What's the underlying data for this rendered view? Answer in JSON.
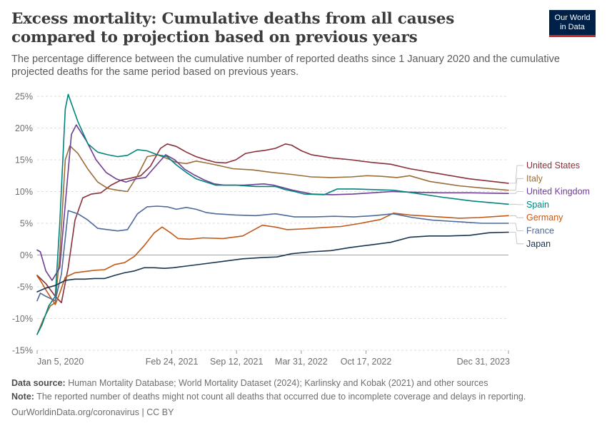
{
  "title": "Excess mortality: Cumulative deaths from all causes compared to projection based on previous years",
  "subtitle": "The percentage difference between the cumulative number of reported deaths since 1 January 2020 and the cumulative projected deaths for the same period based on previous years.",
  "logo": {
    "line1": "Our World",
    "line2": "in Data"
  },
  "footer": {
    "source_label": "Data source:",
    "source_text": " Human Mortality Database; World Mortality Dataset (2024); Karlinsky and Kobak (2021) and other sources",
    "note_label": "Note:",
    "note_text": " The reported number of deaths might not count all deaths that occurred due to incomplete coverage and delays in reporting.",
    "credit": "OurWorldinData.org/coronavirus | CC BY"
  },
  "chart_data": {
    "type": "line",
    "ylim": [
      -15,
      25
    ],
    "yticks": [
      -15,
      -10,
      -5,
      0,
      5,
      10,
      15,
      20,
      25
    ],
    "ytick_labels": [
      "-15%",
      "-10%",
      "-5%",
      "0%",
      "5%",
      "10%",
      "15%",
      "20%",
      "25%"
    ],
    "xlim": [
      "2020-01-05",
      "2023-12-31"
    ],
    "xticks": [
      "2020-01-05",
      "2021-02-24",
      "2021-09-12",
      "2022-03-31",
      "2022-10-17",
      "2023-12-31"
    ],
    "xtick_labels": [
      "Jan 5, 2020",
      "Feb 24, 2021",
      "Sep 12, 2021",
      "Mar 31, 2022",
      "Oct 17, 2022",
      "Dec 31, 2023"
    ],
    "grid": "horizontal-dashed",
    "legend_position": "right",
    "series": [
      {
        "name": "United States",
        "color": "#883039",
        "points": [
          [
            "2020-01-05",
            -3.2
          ],
          [
            "2020-02-01",
            -4.5
          ],
          [
            "2020-03-01",
            -6.5
          ],
          [
            "2020-03-20",
            -7.5
          ],
          [
            "2020-04-10",
            -2
          ],
          [
            "2020-05-01",
            5.5
          ],
          [
            "2020-05-25",
            9
          ],
          [
            "2020-06-20",
            9.6
          ],
          [
            "2020-07-20",
            9.8
          ],
          [
            "2020-08-20",
            11
          ],
          [
            "2020-09-20",
            11.8
          ],
          [
            "2020-10-20",
            12.1
          ],
          [
            "2020-11-20",
            12.5
          ],
          [
            "2020-12-20",
            14
          ],
          [
            "2021-01-20",
            16.8
          ],
          [
            "2021-02-10",
            17.5
          ],
          [
            "2021-03-10",
            17.1
          ],
          [
            "2021-04-10",
            16.2
          ],
          [
            "2021-05-10",
            15.5
          ],
          [
            "2021-06-10",
            15
          ],
          [
            "2021-07-10",
            14.6
          ],
          [
            "2021-08-10",
            14.5
          ],
          [
            "2021-09-10",
            15
          ],
          [
            "2021-10-10",
            16
          ],
          [
            "2021-11-10",
            16.3
          ],
          [
            "2021-12-10",
            16.5
          ],
          [
            "2022-01-10",
            16.8
          ],
          [
            "2022-02-10",
            17.5
          ],
          [
            "2022-03-01",
            17.3
          ],
          [
            "2022-04-01",
            16.4
          ],
          [
            "2022-05-01",
            15.8
          ],
          [
            "2022-07-01",
            15.3
          ],
          [
            "2022-09-01",
            15
          ],
          [
            "2022-11-01",
            14.6
          ],
          [
            "2023-01-01",
            14.3
          ],
          [
            "2023-03-01",
            13.6
          ],
          [
            "2023-06-01",
            12.8
          ],
          [
            "2023-09-01",
            12
          ],
          [
            "2023-12-31",
            11.3
          ]
        ]
      },
      {
        "name": "Italy",
        "color": "#996d39",
        "points": [
          [
            "2020-01-05",
            -12.5
          ],
          [
            "2020-01-25",
            -10
          ],
          [
            "2020-02-15",
            -8
          ],
          [
            "2020-03-01",
            -7.5
          ],
          [
            "2020-03-15",
            0
          ],
          [
            "2020-04-01",
            15
          ],
          [
            "2020-04-15",
            17.2
          ],
          [
            "2020-05-10",
            16
          ],
          [
            "2020-06-10",
            13.5
          ],
          [
            "2020-07-10",
            11.5
          ],
          [
            "2020-08-10",
            10.5
          ],
          [
            "2020-09-10",
            10.2
          ],
          [
            "2020-10-10",
            10
          ],
          [
            "2020-11-10",
            12.5
          ],
          [
            "2020-12-10",
            15.5
          ],
          [
            "2021-01-10",
            15.8
          ],
          [
            "2021-02-10",
            15.2
          ],
          [
            "2021-03-10",
            14.6
          ],
          [
            "2021-04-10",
            14.4
          ],
          [
            "2021-05-10",
            14.8
          ],
          [
            "2021-06-10",
            14.5
          ],
          [
            "2021-07-10",
            14.2
          ],
          [
            "2021-09-01",
            13.6
          ],
          [
            "2021-11-01",
            13.4
          ],
          [
            "2022-01-01",
            13
          ],
          [
            "2022-03-01",
            12.7
          ],
          [
            "2022-05-01",
            12.3
          ],
          [
            "2022-07-01",
            12.2
          ],
          [
            "2022-09-01",
            12.3
          ],
          [
            "2022-10-20",
            12.5
          ],
          [
            "2022-12-01",
            12.4
          ],
          [
            "2023-01-20",
            12.2
          ],
          [
            "2023-03-01",
            12.5
          ],
          [
            "2023-05-01",
            11.6
          ],
          [
            "2023-08-01",
            10.9
          ],
          [
            "2023-10-01",
            10.6
          ],
          [
            "2023-12-31",
            10.2
          ]
        ]
      },
      {
        "name": "United Kingdom",
        "color": "#6d3e91",
        "points": [
          [
            "2020-01-05",
            0.8
          ],
          [
            "2020-01-15",
            0.5
          ],
          [
            "2020-02-01",
            -2.5
          ],
          [
            "2020-02-20",
            -4
          ],
          [
            "2020-03-15",
            -2
          ],
          [
            "2020-04-01",
            8
          ],
          [
            "2020-04-20",
            19
          ],
          [
            "2020-05-05",
            20.5
          ],
          [
            "2020-06-05",
            18
          ],
          [
            "2020-07-05",
            15
          ],
          [
            "2020-08-05",
            13
          ],
          [
            "2020-09-05",
            12
          ],
          [
            "2020-10-05",
            11.5
          ],
          [
            "2020-11-05",
            12
          ],
          [
            "2020-12-05",
            12.2
          ],
          [
            "2021-01-05",
            14
          ],
          [
            "2021-02-05",
            15.8
          ],
          [
            "2021-03-05",
            15
          ],
          [
            "2021-04-05",
            13.5
          ],
          [
            "2021-05-05",
            12.6
          ],
          [
            "2021-06-05",
            11.8
          ],
          [
            "2021-07-05",
            11.2
          ],
          [
            "2021-08-05",
            11
          ],
          [
            "2021-10-05",
            11
          ],
          [
            "2021-12-05",
            11.2
          ],
          [
            "2022-01-05",
            11
          ],
          [
            "2022-03-05",
            10.2
          ],
          [
            "2022-05-05",
            9.6
          ],
          [
            "2022-07-05",
            9.5
          ],
          [
            "2022-09-05",
            9.6
          ],
          [
            "2022-11-05",
            9.8
          ],
          [
            "2023-01-05",
            10
          ],
          [
            "2023-03-05",
            9.9
          ],
          [
            "2023-06-05",
            9.8
          ],
          [
            "2023-09-05",
            9.8
          ],
          [
            "2023-12-31",
            9.7
          ]
        ]
      },
      {
        "name": "Spain",
        "color": "#00847e",
        "points": [
          [
            "2020-01-05",
            -12.5
          ],
          [
            "2020-01-20",
            -11
          ],
          [
            "2020-02-10",
            -8
          ],
          [
            "2020-03-01",
            -6.5
          ],
          [
            "2020-03-15",
            5
          ],
          [
            "2020-04-01",
            23
          ],
          [
            "2020-04-10",
            25.3
          ],
          [
            "2020-05-10",
            21
          ],
          [
            "2020-06-10",
            17.5
          ],
          [
            "2020-07-10",
            16.2
          ],
          [
            "2020-08-10",
            15.8
          ],
          [
            "2020-09-10",
            15.5
          ],
          [
            "2020-10-10",
            15.7
          ],
          [
            "2020-11-10",
            16.6
          ],
          [
            "2020-12-10",
            16.4
          ],
          [
            "2021-01-10",
            15.8
          ],
          [
            "2021-02-10",
            15.5
          ],
          [
            "2021-03-10",
            14.2
          ],
          [
            "2021-04-10",
            13
          ],
          [
            "2021-05-10",
            12
          ],
          [
            "2021-06-10",
            11.5
          ],
          [
            "2021-07-10",
            11
          ],
          [
            "2021-09-10",
            11
          ],
          [
            "2021-11-10",
            10.8
          ],
          [
            "2022-01-10",
            10.8
          ],
          [
            "2022-02-10",
            10.3
          ],
          [
            "2022-03-10",
            10
          ],
          [
            "2022-04-10",
            9.6
          ],
          [
            "2022-06-10",
            9.5
          ],
          [
            "2022-07-20",
            10.4
          ],
          [
            "2022-09-10",
            10.4
          ],
          [
            "2022-11-10",
            10.3
          ],
          [
            "2023-01-10",
            10.2
          ],
          [
            "2023-03-10",
            9.8
          ],
          [
            "2023-06-10",
            9.1
          ],
          [
            "2023-09-10",
            8.5
          ],
          [
            "2023-12-31",
            8
          ]
        ]
      },
      {
        "name": "Germany",
        "color": "#c05917",
        "points": [
          [
            "2020-01-05",
            -3.3
          ],
          [
            "2020-01-15",
            -4
          ],
          [
            "2020-02-01",
            -5.5
          ],
          [
            "2020-03-01",
            -7.8
          ],
          [
            "2020-03-15",
            -6
          ],
          [
            "2020-04-01",
            -3.5
          ],
          [
            "2020-05-01",
            -2.8
          ],
          [
            "2020-06-01",
            -2.6
          ],
          [
            "2020-07-01",
            -2.4
          ],
          [
            "2020-08-01",
            -2.3
          ],
          [
            "2020-09-01",
            -1.5
          ],
          [
            "2020-10-01",
            -1.2
          ],
          [
            "2020-11-01",
            -0.2
          ],
          [
            "2020-12-01",
            1.5
          ],
          [
            "2021-01-01",
            3.5
          ],
          [
            "2021-01-25",
            4.4
          ],
          [
            "2021-02-20",
            3.5
          ],
          [
            "2021-03-15",
            2.6
          ],
          [
            "2021-04-20",
            2.5
          ],
          [
            "2021-06-01",
            2.7
          ],
          [
            "2021-08-01",
            2.6
          ],
          [
            "2021-10-01",
            3
          ],
          [
            "2021-12-01",
            4.7
          ],
          [
            "2022-01-10",
            4.4
          ],
          [
            "2022-02-15",
            4
          ],
          [
            "2022-04-01",
            4.1
          ],
          [
            "2022-06-01",
            4.3
          ],
          [
            "2022-08-01",
            4.5
          ],
          [
            "2022-10-01",
            5
          ],
          [
            "2022-12-01",
            5.6
          ],
          [
            "2023-01-10",
            6.6
          ],
          [
            "2023-03-01",
            6.3
          ],
          [
            "2023-05-01",
            6.1
          ],
          [
            "2023-08-01",
            5.8
          ],
          [
            "2023-10-01",
            5.9
          ],
          [
            "2023-12-31",
            6.2
          ]
        ]
      },
      {
        "name": "France",
        "color": "#4c6a9c",
        "points": [
          [
            "2020-01-05",
            -7.2
          ],
          [
            "2020-01-15",
            -6
          ],
          [
            "2020-02-01",
            -6.5
          ],
          [
            "2020-03-01",
            -7.2
          ],
          [
            "2020-03-20",
            -3
          ],
          [
            "2020-04-10",
            7
          ],
          [
            "2020-05-10",
            6.5
          ],
          [
            "2020-06-10",
            5.5
          ],
          [
            "2020-07-10",
            4.2
          ],
          [
            "2020-08-10",
            4
          ],
          [
            "2020-09-10",
            3.8
          ],
          [
            "2020-10-10",
            4
          ],
          [
            "2020-11-10",
            6.5
          ],
          [
            "2020-12-10",
            7.6
          ],
          [
            "2021-01-10",
            7.7
          ],
          [
            "2021-02-10",
            7.6
          ],
          [
            "2021-03-10",
            7.2
          ],
          [
            "2021-04-10",
            7.5
          ],
          [
            "2021-05-10",
            7.2
          ],
          [
            "2021-06-10",
            6.7
          ],
          [
            "2021-07-10",
            6.5
          ],
          [
            "2021-09-10",
            6.3
          ],
          [
            "2021-11-10",
            6.2
          ],
          [
            "2022-01-10",
            6.5
          ],
          [
            "2022-03-10",
            6
          ],
          [
            "2022-05-10",
            6
          ],
          [
            "2022-07-10",
            6.1
          ],
          [
            "2022-09-10",
            6
          ],
          [
            "2022-11-10",
            6.2
          ],
          [
            "2023-01-10",
            6.5
          ],
          [
            "2023-03-10",
            5.9
          ],
          [
            "2023-05-10",
            5.5
          ],
          [
            "2023-08-10",
            5.2
          ],
          [
            "2023-10-10",
            5
          ],
          [
            "2023-12-31",
            5
          ]
        ]
      },
      {
        "name": "Japan",
        "color": "#18344f",
        "points": [
          [
            "2020-01-05",
            -5.8
          ],
          [
            "2020-02-01",
            -5.2
          ],
          [
            "2020-03-01",
            -4.8
          ],
          [
            "2020-04-01",
            -4
          ],
          [
            "2020-05-01",
            -3.8
          ],
          [
            "2020-06-01",
            -3.8
          ],
          [
            "2020-07-01",
            -3.7
          ],
          [
            "2020-08-01",
            -3.7
          ],
          [
            "2020-09-01",
            -3.2
          ],
          [
            "2020-10-01",
            -2.8
          ],
          [
            "2020-11-01",
            -2.5
          ],
          [
            "2020-12-01",
            -2
          ],
          [
            "2021-01-01",
            -2
          ],
          [
            "2021-02-01",
            -2.1
          ],
          [
            "2021-03-01",
            -2
          ],
          [
            "2021-04-01",
            -1.8
          ],
          [
            "2021-06-01",
            -1.4
          ],
          [
            "2021-08-01",
            -1
          ],
          [
            "2021-10-01",
            -0.6
          ],
          [
            "2021-12-01",
            -0.4
          ],
          [
            "2022-01-15",
            -0.3
          ],
          [
            "2022-03-01",
            0.2
          ],
          [
            "2022-05-01",
            0.5
          ],
          [
            "2022-07-01",
            0.7
          ],
          [
            "2022-09-01",
            1.2
          ],
          [
            "2022-11-01",
            1.6
          ],
          [
            "2023-01-01",
            2
          ],
          [
            "2023-03-01",
            2.8
          ],
          [
            "2023-05-01",
            3
          ],
          [
            "2023-07-01",
            3
          ],
          [
            "2023-09-01",
            3.1
          ],
          [
            "2023-11-01",
            3.5
          ],
          [
            "2023-12-31",
            3.6
          ]
        ]
      }
    ]
  }
}
